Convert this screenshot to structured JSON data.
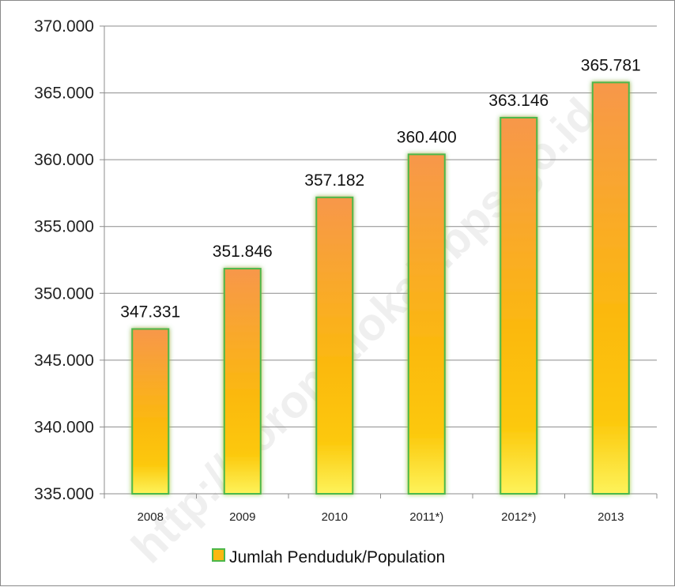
{
  "watermark": "http://gorontalokab.bps.go.id",
  "chart_data": {
    "type": "bar",
    "categories": [
      "2008",
      "2009",
      "2010",
      "2011*)",
      "2012*)",
      "2013"
    ],
    "series": [
      {
        "name": "Jumlah Penduduk/Population",
        "values": [
          347331,
          351846,
          357182,
          360400,
          363146,
          365781
        ],
        "labels": [
          "347.331",
          "351.846",
          "357.182",
          "360.400",
          "363.146",
          "365.781"
        ]
      }
    ],
    "y_ticks": [
      "335.000",
      "340.000",
      "345.000",
      "350.000",
      "355.000",
      "360.000",
      "365.000",
      "370.000"
    ],
    "ylim": [
      335000,
      370000
    ],
    "title": "",
    "xlabel": "",
    "ylabel": "",
    "grid": true,
    "legend_position": "bottom",
    "colors": {
      "bar_top": "#f7974a",
      "bar_mid": "#fbb810",
      "bar_bottom": "#fdf35a",
      "bar_border": "#4bb84b",
      "grid": "#8c8c8c"
    }
  }
}
